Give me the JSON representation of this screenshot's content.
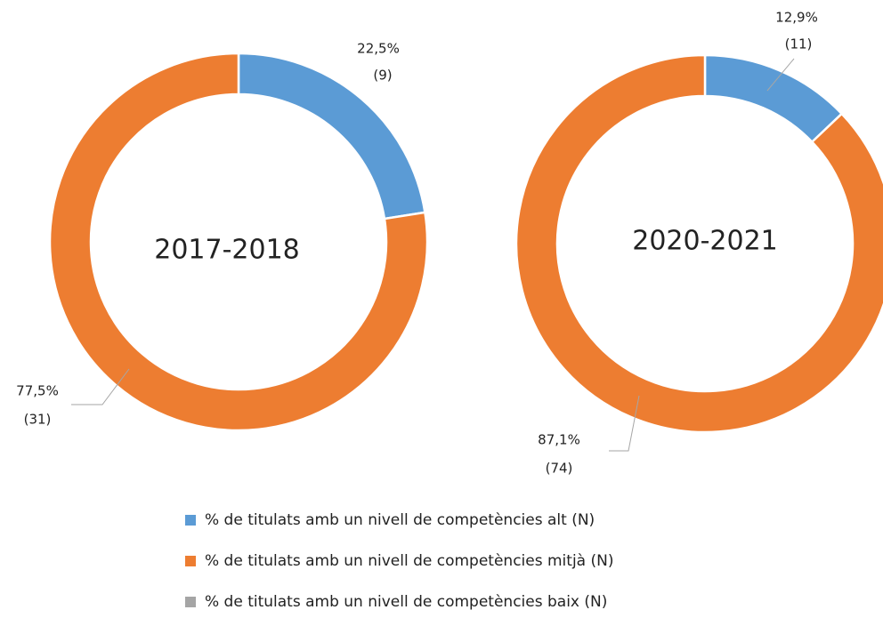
{
  "chart_data": [
    {
      "type": "donut",
      "title": "2017-2018",
      "values": [
        22.5,
        77.5,
        0
      ],
      "value_labels": [
        "22,5%",
        "77,5%",
        null
      ],
      "counts": [
        9,
        31,
        0
      ],
      "count_labels": [
        "(9)",
        "(31)",
        null
      ]
    },
    {
      "type": "donut",
      "title": "2020-2021",
      "values": [
        12.9,
        87.1,
        0
      ],
      "value_labels": [
        "12,9%",
        "87,1%",
        null
      ],
      "counts": [
        11,
        74,
        0
      ],
      "count_labels": [
        "(11)",
        "(74)",
        null
      ]
    }
  ],
  "legend": {
    "items": [
      {
        "name": "% de titulats amb un nivell de competències alt (N)",
        "color": "#5b9bd5"
      },
      {
        "name": "% de titulats amb un nivell de competències mitjà (N)",
        "color": "#ed7d31"
      },
      {
        "name": "% de titulats amb un nivell de competències baix (N)",
        "color": "#a5a5a5"
      }
    ]
  }
}
